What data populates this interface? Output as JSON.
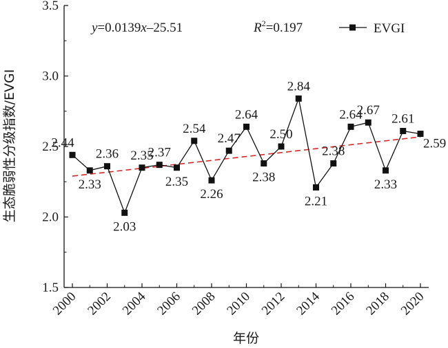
{
  "chart_data": {
    "type": "line",
    "xlabel": "年份",
    "ylabel": "生态脆弱性分级指数/EVGI",
    "xlim": [
      2000,
      2020
    ],
    "ylim": [
      1.5,
      3.5
    ],
    "x_ticks": [
      2000,
      2002,
      2004,
      2006,
      2008,
      2010,
      2012,
      2014,
      2016,
      2018,
      2020
    ],
    "y_ticks": [
      "1.5",
      "2.0",
      "2.5",
      "3.0",
      "3.5"
    ],
    "legend_position": "top-right",
    "series": [
      {
        "name": "EVGI",
        "color": "#111111",
        "marker": "square",
        "x": [
          2000,
          2001,
          2002,
          2003,
          2004,
          2005,
          2006,
          2007,
          2008,
          2009,
          2010,
          2011,
          2012,
          2013,
          2014,
          2015,
          2016,
          2017,
          2018,
          2019,
          2020
        ],
        "values": [
          2.44,
          2.33,
          2.36,
          2.03,
          2.35,
          2.37,
          2.35,
          2.54,
          2.26,
          2.47,
          2.64,
          2.38,
          2.5,
          2.84,
          2.21,
          2.38,
          2.64,
          2.67,
          2.33,
          2.61,
          2.59
        ],
        "labels": [
          "2.44",
          "2.33",
          "2.36",
          "2.03",
          "2.35",
          "2.37",
          "2.35",
          "2.54",
          "2.26",
          "2.47",
          "2.64",
          "2.38",
          "2.50",
          "2.84",
          "2.21",
          "2.38",
          "2.64",
          "2.67",
          "2.33",
          "2.61",
          "2.59"
        ]
      }
    ],
    "trendline": {
      "color": "#d62728",
      "style": "dashed",
      "slope": 0.0139,
      "intercept": -25.51,
      "equation_parts": [
        "y",
        "=0.0139",
        "x",
        "–25.51"
      ],
      "r2_parts": [
        "R",
        "2",
        "=0.197"
      ]
    }
  }
}
